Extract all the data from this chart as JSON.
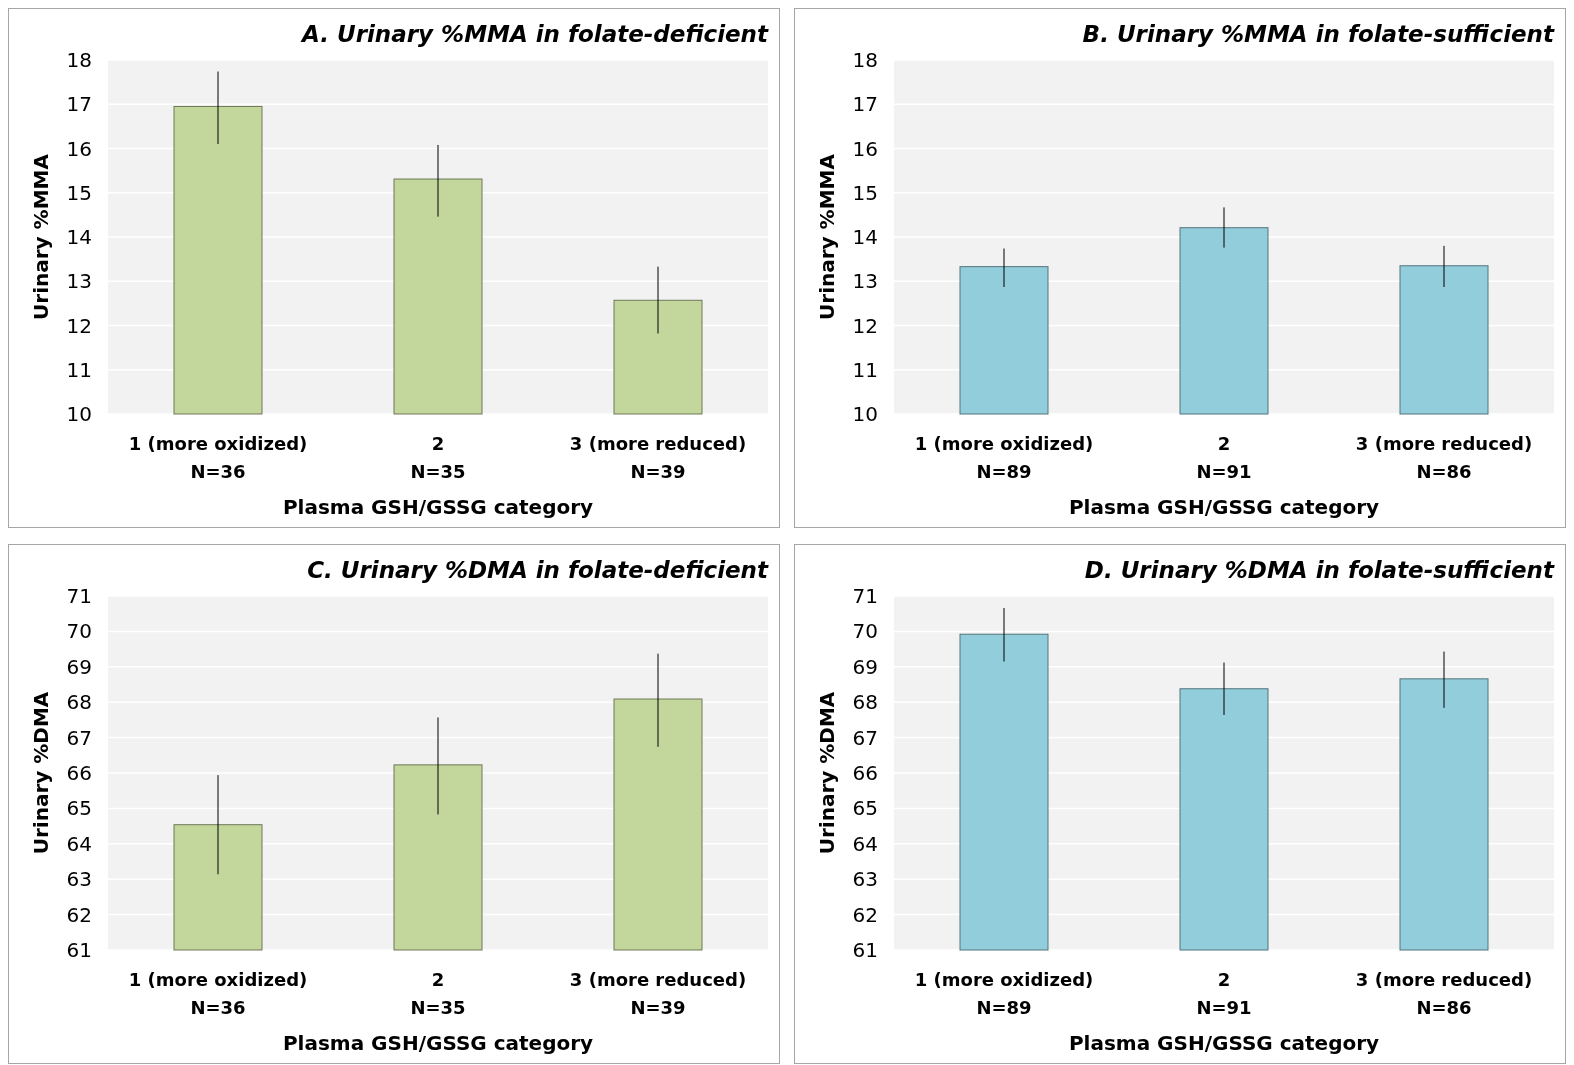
{
  "chart_data": [
    {
      "type": "bar",
      "title": "A.  Urinary %MMA in folate-deficient",
      "xlabel": "Plasma GSH/GSSG  category",
      "ylabel": "Urinary %MMA",
      "categories": [
        "1 (more oxidized)\nN=36",
        "2\nN=35",
        "3 (more reduced)\nN=39"
      ],
      "values": [
        16.95,
        15.31,
        12.57
      ],
      "errors": [
        [
          16.1,
          17.74
        ],
        [
          14.46,
          16.08
        ],
        [
          11.82,
          13.33
        ]
      ],
      "color": "#c3d69b",
      "ylim": [
        10,
        18
      ],
      "yticks": [
        10,
        11,
        12,
        13,
        14,
        15,
        16,
        17,
        18
      ],
      "grid": "y"
    },
    {
      "type": "bar",
      "title": "B.  Urinary %MMA in folate-sufficient",
      "xlabel": "Plasma GSH/GSSG  category",
      "ylabel": "Urinary %MMA",
      "categories": [
        "1 (more oxidized)\nN=89",
        "2\nN=91",
        "3 (more reduced)\nN=86"
      ],
      "values": [
        13.33,
        14.21,
        13.35
      ],
      "errors": [
        [
          12.87,
          13.74
        ],
        [
          13.76,
          14.67
        ],
        [
          12.87,
          13.8
        ]
      ],
      "color": "#92cddc",
      "ylim": [
        10,
        18
      ],
      "yticks": [
        10,
        11,
        12,
        13,
        14,
        15,
        16,
        17,
        18
      ],
      "grid": "y"
    },
    {
      "type": "bar",
      "title": "C.  Urinary %DMA in folate-deficient",
      "xlabel": "Plasma GSH/GSSG  category",
      "ylabel": "Urinary %DMA",
      "categories": [
        "1 (more oxidized)\nN=36",
        "2\nN=35",
        "3 (more reduced)\nN=39"
      ],
      "values": [
        64.54,
        66.23,
        68.09
      ],
      "errors": [
        [
          63.14,
          65.94
        ],
        [
          64.83,
          67.57
        ],
        [
          66.74,
          69.37
        ]
      ],
      "color": "#c3d69b",
      "ylim": [
        61,
        71
      ],
      "yticks": [
        61,
        62,
        63,
        64,
        65,
        66,
        67,
        68,
        69,
        70,
        71
      ],
      "grid": "y"
    },
    {
      "type": "bar",
      "title": "D.  Urinary %DMA in folate-sufficient",
      "xlabel": "Plasma GSH/GSSG  category",
      "ylabel": "Urinary %DMA",
      "categories": [
        "1 (more oxidized)\nN=89",
        "2\nN=91",
        "3 (more reduced)\nN=86"
      ],
      "values": [
        69.92,
        68.38,
        68.66
      ],
      "errors": [
        [
          69.15,
          70.66
        ],
        [
          67.64,
          69.12
        ],
        [
          67.84,
          69.43
        ]
      ],
      "color": "#92cddc",
      "ylim": [
        61,
        71
      ],
      "yticks": [
        61,
        62,
        63,
        64,
        65,
        66,
        67,
        68,
        69,
        70,
        71
      ],
      "grid": "y"
    }
  ]
}
